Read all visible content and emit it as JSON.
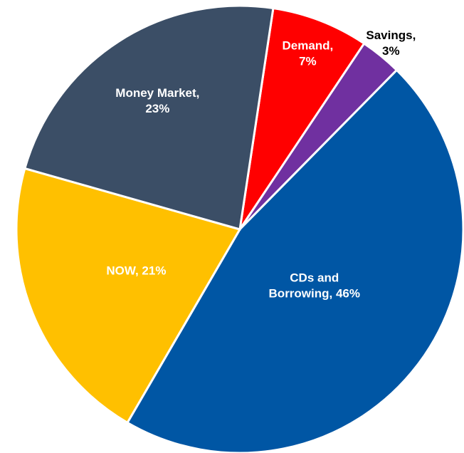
{
  "chart_data": {
    "type": "pie",
    "values": [
      7,
      3,
      46,
      21,
      23
    ],
    "labels": [
      [
        "Demand,",
        "7%"
      ],
      [
        "Savings,",
        "3%"
      ],
      [
        "CDs and",
        "Borrowing, 46%"
      ],
      [
        "NOW, 21%"
      ],
      [
        "Money Market,",
        "23%"
      ]
    ],
    "colors": [
      "#ff0000",
      "#7030a0",
      "#0056a4",
      "#ffc000",
      "#3b4e66"
    ],
    "label_colors": [
      "#ffffff",
      "#000000",
      "#ffffff",
      "#ffffff",
      "#ffffff"
    ]
  }
}
